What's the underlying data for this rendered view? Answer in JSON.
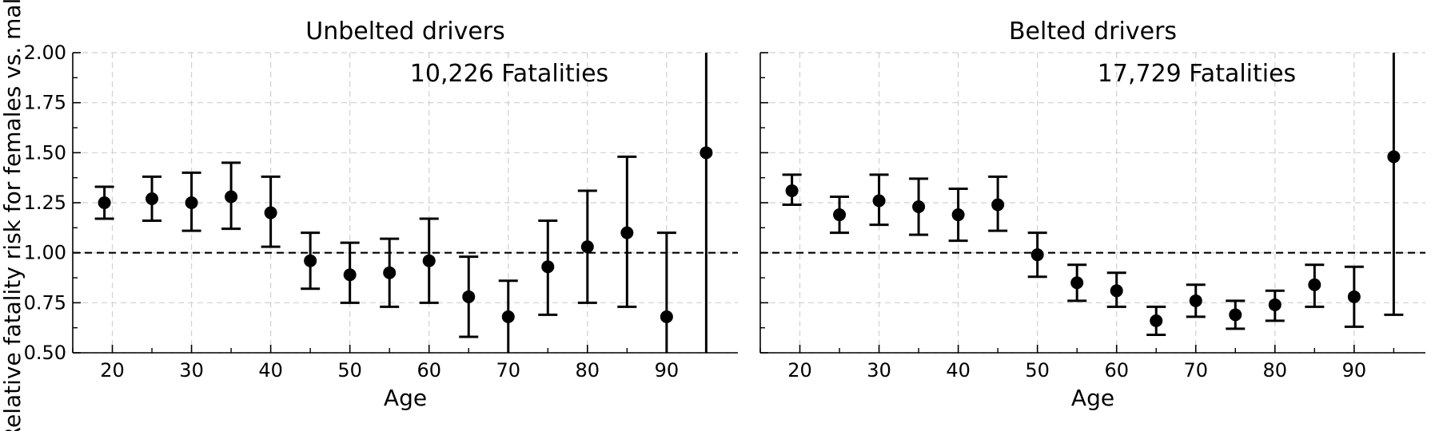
{
  "chart_data": [
    {
      "type": "scatter",
      "title": "Unbelted drivers",
      "annotation": "10,226 Fatalities",
      "xlabel": "Age",
      "ylabel": "Relative fatality risk for females vs. males",
      "xlim": [
        15,
        99
      ],
      "ylim": [
        0.5,
        2.0
      ],
      "x_ticks": [
        20,
        30,
        40,
        50,
        60,
        70,
        80,
        90
      ],
      "y_ticks": [
        0.5,
        0.75,
        1.0,
        1.25,
        1.5,
        1.75,
        2.0
      ],
      "y_tick_labels": [
        "0.50",
        "0.75",
        "1.00",
        "1.25",
        "1.50",
        "1.75",
        "2.00"
      ],
      "reference_line": 1.0,
      "grid": true,
      "points": [
        {
          "x": 19,
          "y": 1.25,
          "lo": 1.17,
          "hi": 1.33
        },
        {
          "x": 25,
          "y": 1.27,
          "lo": 1.16,
          "hi": 1.38
        },
        {
          "x": 30,
          "y": 1.25,
          "lo": 1.11,
          "hi": 1.4
        },
        {
          "x": 35,
          "y": 1.28,
          "lo": 1.12,
          "hi": 1.45
        },
        {
          "x": 40,
          "y": 1.2,
          "lo": 1.03,
          "hi": 1.38
        },
        {
          "x": 45,
          "y": 0.96,
          "lo": 0.82,
          "hi": 1.1
        },
        {
          "x": 50,
          "y": 0.89,
          "lo": 0.75,
          "hi": 1.05
        },
        {
          "x": 55,
          "y": 0.9,
          "lo": 0.73,
          "hi": 1.07
        },
        {
          "x": 60,
          "y": 0.96,
          "lo": 0.75,
          "hi": 1.17
        },
        {
          "x": 65,
          "y": 0.78,
          "lo": 0.58,
          "hi": 0.98
        },
        {
          "x": 70,
          "y": 0.68,
          "lo": 0.49,
          "hi": 0.86
        },
        {
          "x": 75,
          "y": 0.93,
          "lo": 0.69,
          "hi": 1.16
        },
        {
          "x": 80,
          "y": 1.03,
          "lo": 0.75,
          "hi": 1.31
        },
        {
          "x": 85,
          "y": 1.1,
          "lo": 0.73,
          "hi": 1.48
        },
        {
          "x": 90,
          "y": 0.68,
          "lo": 0.4,
          "hi": 1.1
        },
        {
          "x": 95,
          "y": 1.5,
          "lo": 0.3,
          "hi": 2.7
        }
      ]
    },
    {
      "type": "scatter",
      "title": "Belted drivers",
      "annotation": "17,729 Fatalities",
      "xlabel": "Age",
      "xlim": [
        15,
        99
      ],
      "ylim": [
        0.5,
        2.0
      ],
      "x_ticks": [
        20,
        30,
        40,
        50,
        60,
        70,
        80,
        90
      ],
      "y_ticks": [
        0.5,
        0.75,
        1.0,
        1.25,
        1.5,
        1.75,
        2.0
      ],
      "reference_line": 1.0,
      "grid": true,
      "points": [
        {
          "x": 19,
          "y": 1.31,
          "lo": 1.24,
          "hi": 1.39
        },
        {
          "x": 25,
          "y": 1.19,
          "lo": 1.1,
          "hi": 1.28
        },
        {
          "x": 30,
          "y": 1.26,
          "lo": 1.14,
          "hi": 1.39
        },
        {
          "x": 35,
          "y": 1.23,
          "lo": 1.09,
          "hi": 1.37
        },
        {
          "x": 40,
          "y": 1.19,
          "lo": 1.06,
          "hi": 1.32
        },
        {
          "x": 45,
          "y": 1.24,
          "lo": 1.11,
          "hi": 1.38
        },
        {
          "x": 50,
          "y": 0.99,
          "lo": 0.88,
          "hi": 1.1
        },
        {
          "x": 55,
          "y": 0.85,
          "lo": 0.76,
          "hi": 0.94
        },
        {
          "x": 60,
          "y": 0.81,
          "lo": 0.73,
          "hi": 0.9
        },
        {
          "x": 65,
          "y": 0.66,
          "lo": 0.59,
          "hi": 0.73
        },
        {
          "x": 70,
          "y": 0.76,
          "lo": 0.68,
          "hi": 0.84
        },
        {
          "x": 75,
          "y": 0.69,
          "lo": 0.62,
          "hi": 0.76
        },
        {
          "x": 80,
          "y": 0.74,
          "lo": 0.66,
          "hi": 0.81
        },
        {
          "x": 85,
          "y": 0.84,
          "lo": 0.73,
          "hi": 0.94
        },
        {
          "x": 90,
          "y": 0.78,
          "lo": 0.63,
          "hi": 0.93
        },
        {
          "x": 95,
          "y": 1.48,
          "lo": 0.69,
          "hi": 2.3
        }
      ]
    }
  ]
}
